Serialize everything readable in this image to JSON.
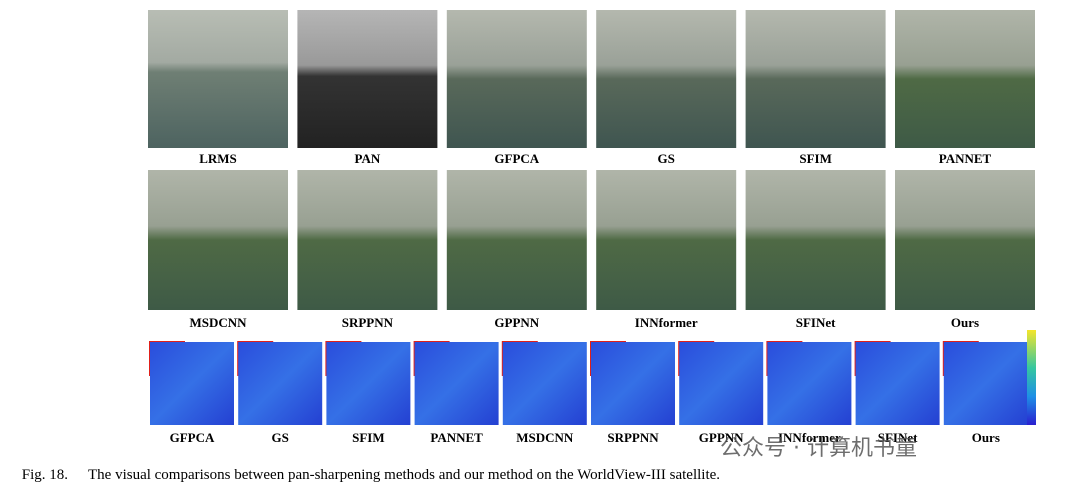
{
  "figure": {
    "row1": [
      "LRMS",
      "PAN",
      "GFPCA",
      "GS",
      "SFIM",
      "PANNET"
    ],
    "row2": [
      "MSDCNN",
      "SRPPNN",
      "GPPNN",
      "INNformer",
      "SFINet",
      "Ours"
    ],
    "row3": [
      "GFPCA",
      "GS",
      "SFIM",
      "PANNET",
      "MSDCNN",
      "SRPPNN",
      "GPPNN",
      "INNformer",
      "SFINet",
      "Ours"
    ],
    "caption": {
      "label": "Fig. 18.",
      "text": "The visual comparisons between pan-sharpening methods and our method on the WorldView-III satellite."
    }
  },
  "watermark": "公众号 · 计算机书童"
}
